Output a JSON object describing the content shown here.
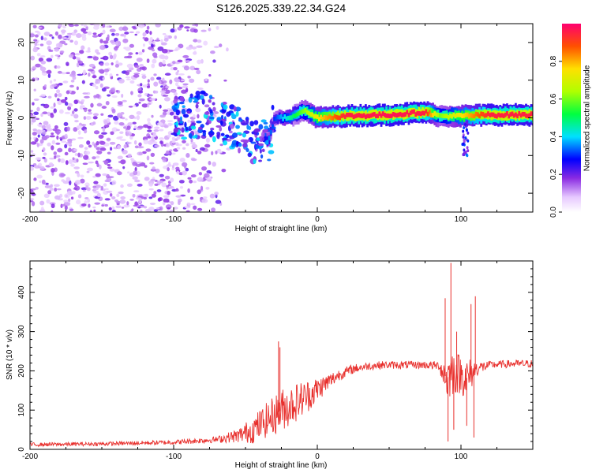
{
  "title": "S126.2025.339.22.34.G24",
  "colors": {
    "snr_line": "#e8302d",
    "frame": "#000000"
  },
  "chart_data": [
    {
      "type": "heatmap",
      "name": "spectrogram",
      "xlabel": "Height of straight line (km)",
      "ylabel": "Frequency (Hz)",
      "xlim": [
        -200,
        150
      ],
      "ylim": [
        -25,
        25
      ],
      "xticks": [
        -200,
        -100,
        0,
        100
      ],
      "yticks": [
        -20,
        -10,
        0,
        10,
        20
      ],
      "colorbar": {
        "label": "Normalized spectral amplitude",
        "range": [
          0,
          1
        ],
        "ticks": [
          0.0,
          0.2,
          0.4,
          0.6,
          0.8
        ],
        "tick_labels": [
          "0.0",
          "0.2",
          "0.4",
          "0.6",
          "0.8"
        ]
      },
      "features": {
        "noise_region_x": [
          -200,
          -65
        ],
        "noise_level": 0.12,
        "transition_region_x": [
          -100,
          -30
        ],
        "trace": [
          {
            "x": -100,
            "f": 0,
            "a": 0.2
          },
          {
            "x": -80,
            "f": 1,
            "a": 0.25
          },
          {
            "x": -60,
            "f": -2,
            "a": 0.35
          },
          {
            "x": -50,
            "f": -5,
            "a": 0.4
          },
          {
            "x": -40,
            "f": -7,
            "a": 0.45
          },
          {
            "x": -34,
            "f": -6,
            "a": 0.35
          },
          {
            "x": -30,
            "f": 0,
            "a": 0.3
          },
          {
            "x": -20,
            "f": 0,
            "a": 0.45
          },
          {
            "x": -10,
            "f": 2,
            "a": 0.6
          },
          {
            "x": 0,
            "f": 0,
            "a": 0.75
          },
          {
            "x": 20,
            "f": 0.5,
            "a": 0.95
          },
          {
            "x": 50,
            "f": 0.8,
            "a": 0.97
          },
          {
            "x": 75,
            "f": 1.5,
            "a": 0.95
          },
          {
            "x": 85,
            "f": 0.5,
            "a": 0.6
          },
          {
            "x": 100,
            "f": 0.5,
            "a": 0.75
          },
          {
            "x": 120,
            "f": 0.8,
            "a": 0.95
          },
          {
            "x": 150,
            "f": 0.8,
            "a": 0.95
          }
        ]
      }
    },
    {
      "type": "line",
      "name": "snr",
      "xlabel": "Height of straight line (km)",
      "ylabel": "SNR (10 * v/v)",
      "xlim": [
        -200,
        150
      ],
      "ylim": [
        0,
        480
      ],
      "xticks": [
        -200,
        -100,
        0,
        100
      ],
      "yticks": [
        0,
        100,
        200,
        300,
        400
      ],
      "envelope": {
        "x": [
          -200,
          -150,
          -100,
          -70,
          -55,
          -45,
          -35,
          -25,
          -15,
          -5,
          5,
          15,
          25,
          35,
          45,
          60,
          75,
          85,
          90,
          95,
          100,
          105,
          110,
          120,
          135,
          150
        ],
        "mean": [
          12,
          14,
          18,
          25,
          35,
          50,
          75,
          100,
          120,
          140,
          165,
          190,
          205,
          212,
          215,
          215,
          215,
          213,
          180,
          200,
          190,
          180,
          205,
          215,
          218,
          218
        ],
        "noise": [
          5,
          5,
          6,
          8,
          18,
          35,
          45,
          55,
          50,
          40,
          25,
          15,
          12,
          10,
          10,
          10,
          10,
          12,
          60,
          60,
          50,
          55,
          20,
          10,
          10,
          10
        ]
      },
      "spikes": [
        {
          "x": -27,
          "y": 275
        },
        {
          "x": -26,
          "y": 260
        },
        {
          "x": 89,
          "y": 385
        },
        {
          "x": 91,
          "y": 20
        },
        {
          "x": 93,
          "y": 475
        },
        {
          "x": 95,
          "y": 50
        },
        {
          "x": 97,
          "y": 300
        },
        {
          "x": 104,
          "y": 60
        },
        {
          "x": 107,
          "y": 370
        },
        {
          "x": 109,
          "y": 30
        },
        {
          "x": 110,
          "y": 390
        }
      ]
    }
  ]
}
